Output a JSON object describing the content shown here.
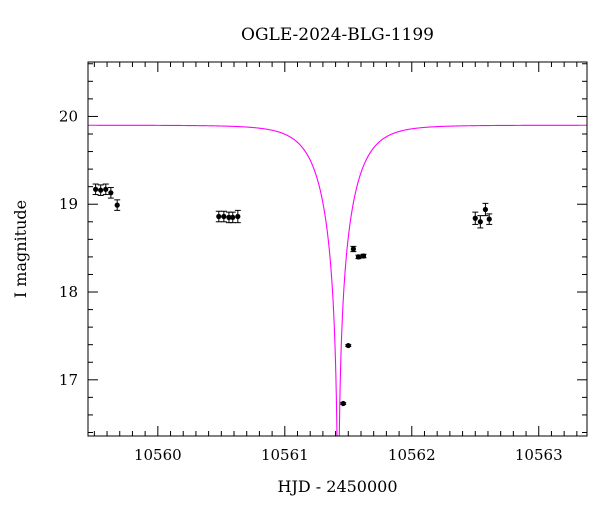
{
  "chart_data": {
    "type": "scatter",
    "title": "OGLE-2024-BLG-1199",
    "xlabel": "HJD - 2450000",
    "ylabel": "I magnitude",
    "xlim": [
      10559.45,
      10563.38
    ],
    "ylim": [
      20.62,
      16.36
    ],
    "y_inverted": true,
    "x_major_ticks": [
      10560,
      10561,
      10562,
      10563
    ],
    "x_tick_labels": [
      "10560",
      "10561",
      "10562",
      "10563"
    ],
    "x_minor_step": 0.1,
    "y_major_ticks": [
      17,
      18,
      19,
      20
    ],
    "y_tick_labels": [
      "17",
      "18",
      "19",
      "20"
    ],
    "y_minor_step": 0.2,
    "grid": false,
    "model_color": "#ff00ff",
    "marker_color": "#000000",
    "model": {
      "t0": 10561.42,
      "tE": 0.25,
      "u0": 0.013,
      "baseline": 19.9
    },
    "series": [
      {
        "x": [
          10559.51,
          10559.55,
          10559.59,
          10559.63,
          10559.68,
          10560.48,
          10560.52,
          10560.56,
          10560.59,
          10560.63,
          10561.46,
          10561.5,
          10561.54,
          10561.58,
          10561.62,
          10562.5,
          10562.54,
          10562.58,
          10562.61
        ],
        "y": [
          19.17,
          19.16,
          19.17,
          19.13,
          18.99,
          18.86,
          18.86,
          18.85,
          18.85,
          18.86,
          16.73,
          17.39,
          18.49,
          18.4,
          18.41,
          18.84,
          18.8,
          18.94,
          18.83
        ],
        "yerr": [
          0.06,
          0.06,
          0.06,
          0.06,
          0.06,
          0.06,
          0.06,
          0.06,
          0.06,
          0.07,
          0.01,
          0.01,
          0.03,
          0.02,
          0.02,
          0.07,
          0.07,
          0.07,
          0.06
        ]
      }
    ]
  }
}
